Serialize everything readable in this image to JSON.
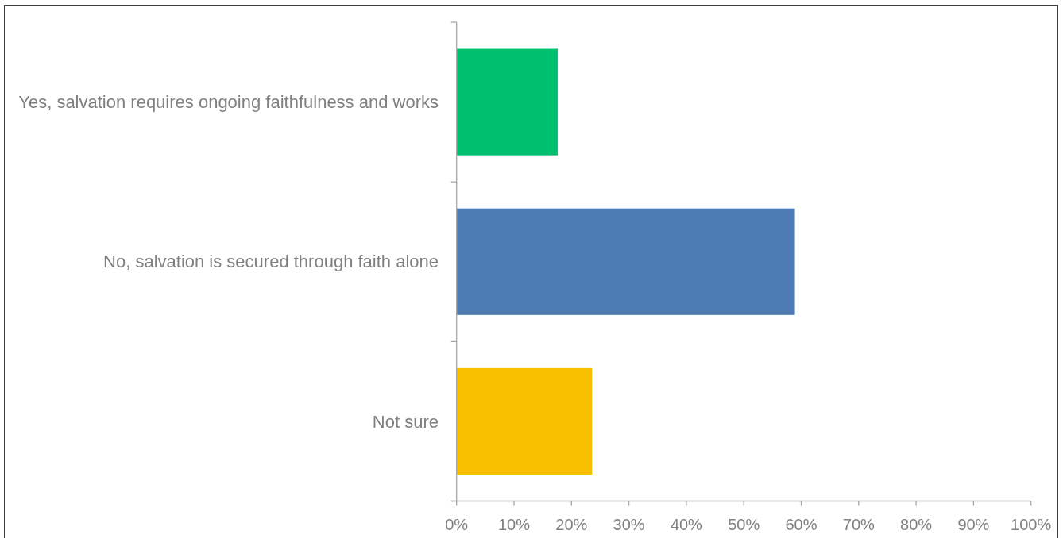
{
  "chart_data": {
    "type": "bar",
    "orientation": "horizontal",
    "categories": [
      "Yes, salvation requires ongoing faithfulness and works",
      "No, salvation is secured through faith alone",
      "Not sure"
    ],
    "values": [
      17.6,
      58.9,
      23.6
    ],
    "colors": [
      "#00bf6f",
      "#4e7bb4",
      "#f8bf00"
    ],
    "xlim": [
      0,
      100
    ],
    "xticks": [
      {
        "value": 0,
        "label": "0%"
      },
      {
        "value": 10,
        "label": "10%"
      },
      {
        "value": 20,
        "label": "20%"
      },
      {
        "value": 30,
        "label": "30%"
      },
      {
        "value": 40,
        "label": "40%"
      },
      {
        "value": 50,
        "label": "50%"
      },
      {
        "value": 60,
        "label": "60%"
      },
      {
        "value": 70,
        "label": "70%"
      },
      {
        "value": 80,
        "label": "80%"
      },
      {
        "value": 90,
        "label": "90%"
      },
      {
        "value": 100,
        "label": "100%"
      }
    ]
  }
}
